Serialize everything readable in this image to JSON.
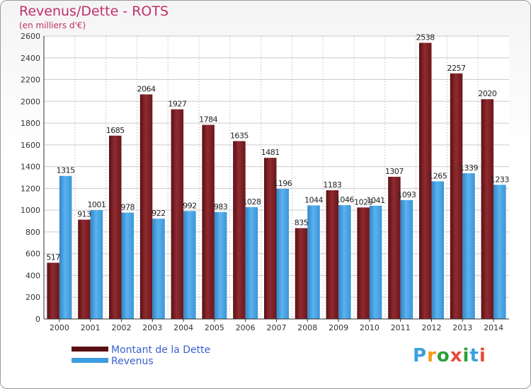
{
  "header": {
    "title": "Revenus/Dette - ROTS",
    "subtitle": "(en milliers d'€)"
  },
  "logo": {
    "text": "Proxiti",
    "letters": [
      "P",
      "r",
      "o",
      "x",
      "i",
      "t",
      "i"
    ],
    "colors": [
      "#3aa0e0",
      "#f39c12",
      "#2e9e3a",
      "#e74c3c",
      "#2e9e3a",
      "#3aa0e0",
      "#e74c3c"
    ]
  },
  "chart_data": {
    "type": "bar",
    "categories": [
      "2000",
      "2001",
      "2002",
      "2003",
      "2004",
      "2005",
      "2006",
      "2007",
      "2008",
      "2009",
      "2010",
      "2011",
      "2012",
      "2013",
      "2014"
    ],
    "series": [
      {
        "name": "Montant de la Dette",
        "color": "#7a1e22",
        "values": [
          517,
          913,
          1685,
          2064,
          1927,
          1784,
          1635,
          1481,
          835,
          1183,
          1025,
          1307,
          2538,
          2257,
          2020
        ]
      },
      {
        "name": "Revenus",
        "color": "#3d9de0",
        "values": [
          1315,
          1001,
          978,
          922,
          992,
          983,
          1028,
          1196,
          1044,
          1046,
          1041,
          1093,
          1265,
          1339,
          1233
        ]
      }
    ],
    "yticks": [
      "0",
      "200",
      "400",
      "600",
      "800",
      "1000",
      "1200",
      "1400",
      "1600",
      "1800",
      "2000",
      "2200",
      "2400",
      "2600"
    ],
    "ylim": [
      0,
      2600
    ],
    "grid": true,
    "legend": "bottom-left"
  }
}
